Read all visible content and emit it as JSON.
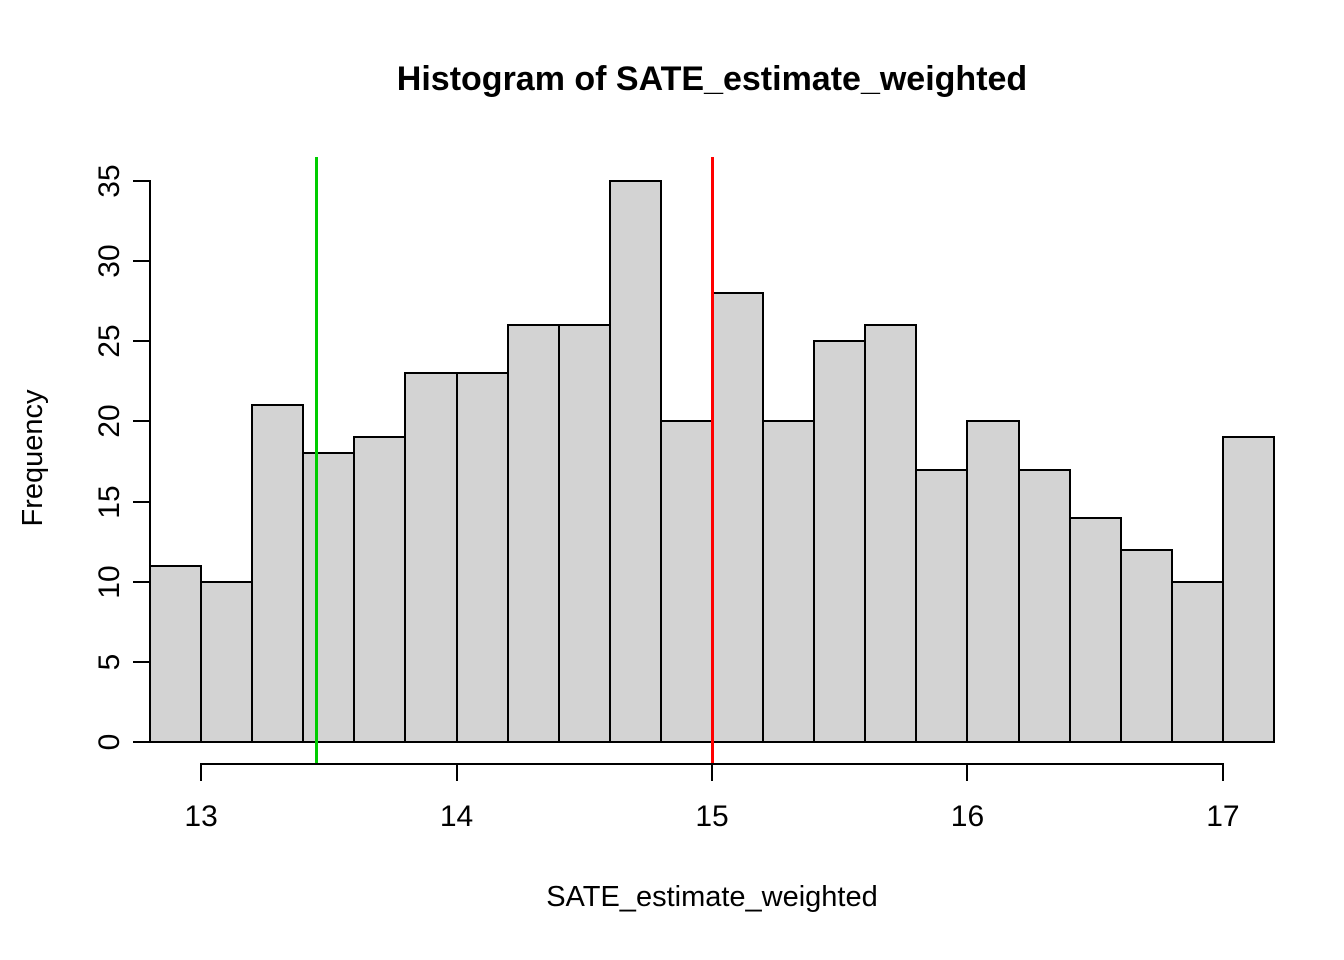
{
  "figure": {
    "title": "Histogram of SATE_estimate_weighted",
    "x_axis_label": "SATE_estimate_weighted",
    "y_axis_label": "Frequency"
  },
  "chart_data": {
    "type": "bar",
    "subtype": "histogram",
    "title": "Histogram of SATE_estimate_weighted",
    "xlabel": "SATE_estimate_weighted",
    "ylabel": "Frequency",
    "bin_start": 12.8,
    "bin_width": 0.2,
    "bin_edges": [
      12.8,
      13.0,
      13.2,
      13.4,
      13.6,
      13.8,
      14.0,
      14.2,
      14.4,
      14.6,
      14.8,
      15.0,
      15.2,
      15.4,
      15.6,
      15.8,
      16.0,
      16.2,
      16.4,
      16.6,
      16.8,
      17.0,
      17.2
    ],
    "counts": [
      11,
      10,
      21,
      18,
      19,
      23,
      23,
      26,
      26,
      35,
      20,
      28,
      20,
      25,
      26,
      17,
      20,
      17,
      14,
      12,
      10,
      19
    ],
    "x_ticks": [
      "13",
      "14",
      "15",
      "16",
      "17"
    ],
    "x_tick_values": [
      13,
      14,
      15,
      16,
      17
    ],
    "y_ticks": [
      "0",
      "5",
      "10",
      "15",
      "20",
      "25",
      "30",
      "35"
    ],
    "y_tick_values": [
      0,
      5,
      10,
      15,
      20,
      25,
      30,
      35
    ],
    "xlim": [
      12.8,
      17.2
    ],
    "ylim": [
      0,
      35
    ],
    "grid": false,
    "legend": "none",
    "bar_fill_color": "#d3d3d3",
    "bar_border_color": "#000000",
    "axis_color": "#000000",
    "vlines": [
      {
        "x": 13.45,
        "color": "#00CD00",
        "name": "green-vline"
      },
      {
        "x": 15.0,
        "color": "#FF0000",
        "name": "red-vline"
      }
    ]
  }
}
